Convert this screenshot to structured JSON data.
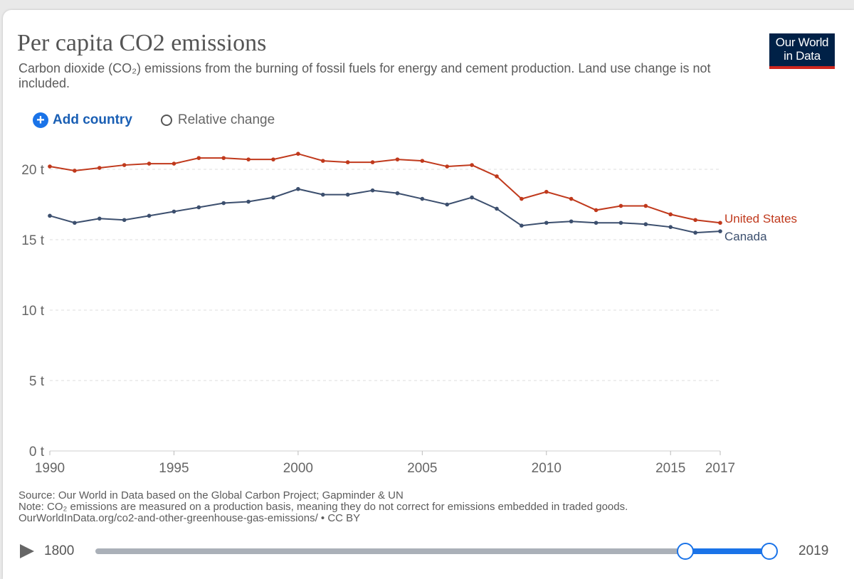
{
  "header": {
    "title": "Per capita CO2 emissions",
    "subtitle": "Carbon dioxide (CO₂) emissions from the burning of fossil fuels for energy and cement production. Land use change is not included.",
    "logo_line1": "Our World",
    "logo_line2": "in Data"
  },
  "controls": {
    "add_country": "Add country",
    "relative_change": "Relative change"
  },
  "colors": {
    "united_states": "#c0391c",
    "canada": "#3c4f6e"
  },
  "chart_data": {
    "type": "line",
    "title": "Per capita CO2 emissions",
    "xlabel": "",
    "ylabel": "",
    "xlim": [
      1990,
      2017
    ],
    "ylim": [
      0,
      20
    ],
    "x_ticks": [
      1990,
      1995,
      2000,
      2005,
      2010,
      2015,
      2017
    ],
    "x_tick_labels": [
      "1990",
      "1995",
      "2000",
      "2005",
      "2010",
      "2015",
      "2017"
    ],
    "y_ticks": [
      0,
      5,
      10,
      15,
      20
    ],
    "y_tick_labels": [
      "0 t",
      "5 t",
      "10 t",
      "15 t",
      "20 t"
    ],
    "grid": true,
    "x": [
      1990,
      1991,
      1992,
      1993,
      1994,
      1995,
      1996,
      1997,
      1998,
      1999,
      2000,
      2001,
      2002,
      2003,
      2004,
      2005,
      2006,
      2007,
      2008,
      2009,
      2010,
      2011,
      2012,
      2013,
      2014,
      2015,
      2016,
      2017
    ],
    "series": [
      {
        "name": "United States",
        "color": "#c0391c",
        "values": [
          20.2,
          19.9,
          20.1,
          20.3,
          20.4,
          20.4,
          20.8,
          20.8,
          20.7,
          20.7,
          21.1,
          20.6,
          20.5,
          20.5,
          20.7,
          20.6,
          20.2,
          20.3,
          19.5,
          17.9,
          18.4,
          17.9,
          17.1,
          17.4,
          17.4,
          16.8,
          16.4,
          16.2
        ]
      },
      {
        "name": "Canada",
        "color": "#3c4f6e",
        "values": [
          16.7,
          16.2,
          16.5,
          16.4,
          16.7,
          17.0,
          17.3,
          17.6,
          17.7,
          18.0,
          18.6,
          18.2,
          18.2,
          18.5,
          18.3,
          17.9,
          17.5,
          18.0,
          17.2,
          16.0,
          16.2,
          16.3,
          16.2,
          16.2,
          16.1,
          15.9,
          15.5,
          15.6
        ]
      }
    ]
  },
  "footer": {
    "source": "Source: Our World in Data based on the Global Carbon Project; Gapminder & UN",
    "note": "Note: CO₂ emissions are measured on a production basis, meaning they do not correct for emissions embedded in traded goods.",
    "url": "OurWorldInData.org/co2-and-other-greenhouse-gas-emissions/ • CC BY"
  },
  "timeline": {
    "start_label": "1800",
    "end_label": "2019",
    "range_start_year": 1990,
    "range_end_year": 2017
  }
}
